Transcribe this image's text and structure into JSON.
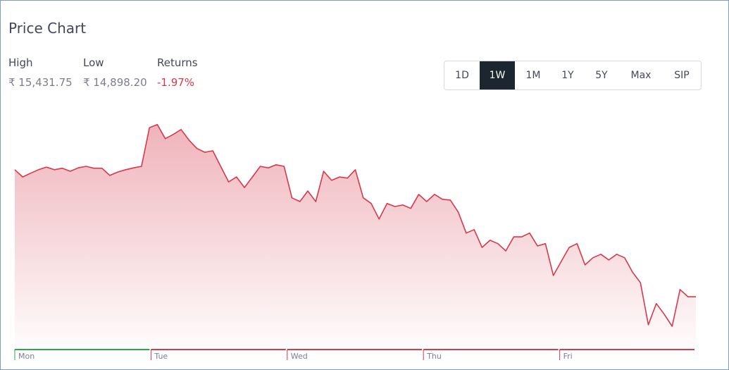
{
  "header": {
    "title": "Price Chart"
  },
  "stats": [
    {
      "label": "High",
      "value": "₹ 15,431.75"
    },
    {
      "label": "Low",
      "value": "₹ 14,898.20"
    },
    {
      "label": "Returns",
      "value": "-1.97%"
    }
  ],
  "ranges": {
    "options": [
      "1D",
      "1W",
      "1M",
      "1Y",
      "5Y",
      "Max",
      "SIP"
    ],
    "active": "1W"
  },
  "chart_data": {
    "type": "area",
    "color": "#d6394b",
    "x_labels": [
      "Mon",
      "Tue",
      "Wed",
      "Thu",
      "Fri"
    ],
    "x_label_colors": [
      "#2ea44f",
      "#d6394b",
      "#d6394b",
      "#d6394b",
      "#d6394b"
    ],
    "ylim": [
      14846,
      15478
    ],
    "values": [
      15311,
      15292,
      15302,
      15311,
      15318,
      15311,
      15315,
      15307,
      15316,
      15320,
      15315,
      15315,
      15296,
      15305,
      15311,
      15316,
      15320,
      15422,
      15430,
      15393,
      15404,
      15417,
      15389,
      15367,
      15357,
      15361,
      15320,
      15279,
      15292,
      15264,
      15292,
      15320,
      15316,
      15324,
      15320,
      15237,
      15227,
      15255,
      15227,
      15307,
      15283,
      15292,
      15289,
      15311,
      15237,
      15222,
      15181,
      15222,
      15214,
      15218,
      15209,
      15246,
      15227,
      15246,
      15233,
      15231,
      15199,
      15144,
      15153,
      15106,
      15125,
      15116,
      15097,
      15134,
      15134,
      15144,
      15110,
      15116,
      15032,
      15069,
      15106,
      15116,
      15060,
      15079,
      15088,
      15073,
      15088,
      15079,
      15041,
      15013,
      14902,
      14958,
      14930,
      14898,
      14995,
      14976,
      14976
    ]
  }
}
